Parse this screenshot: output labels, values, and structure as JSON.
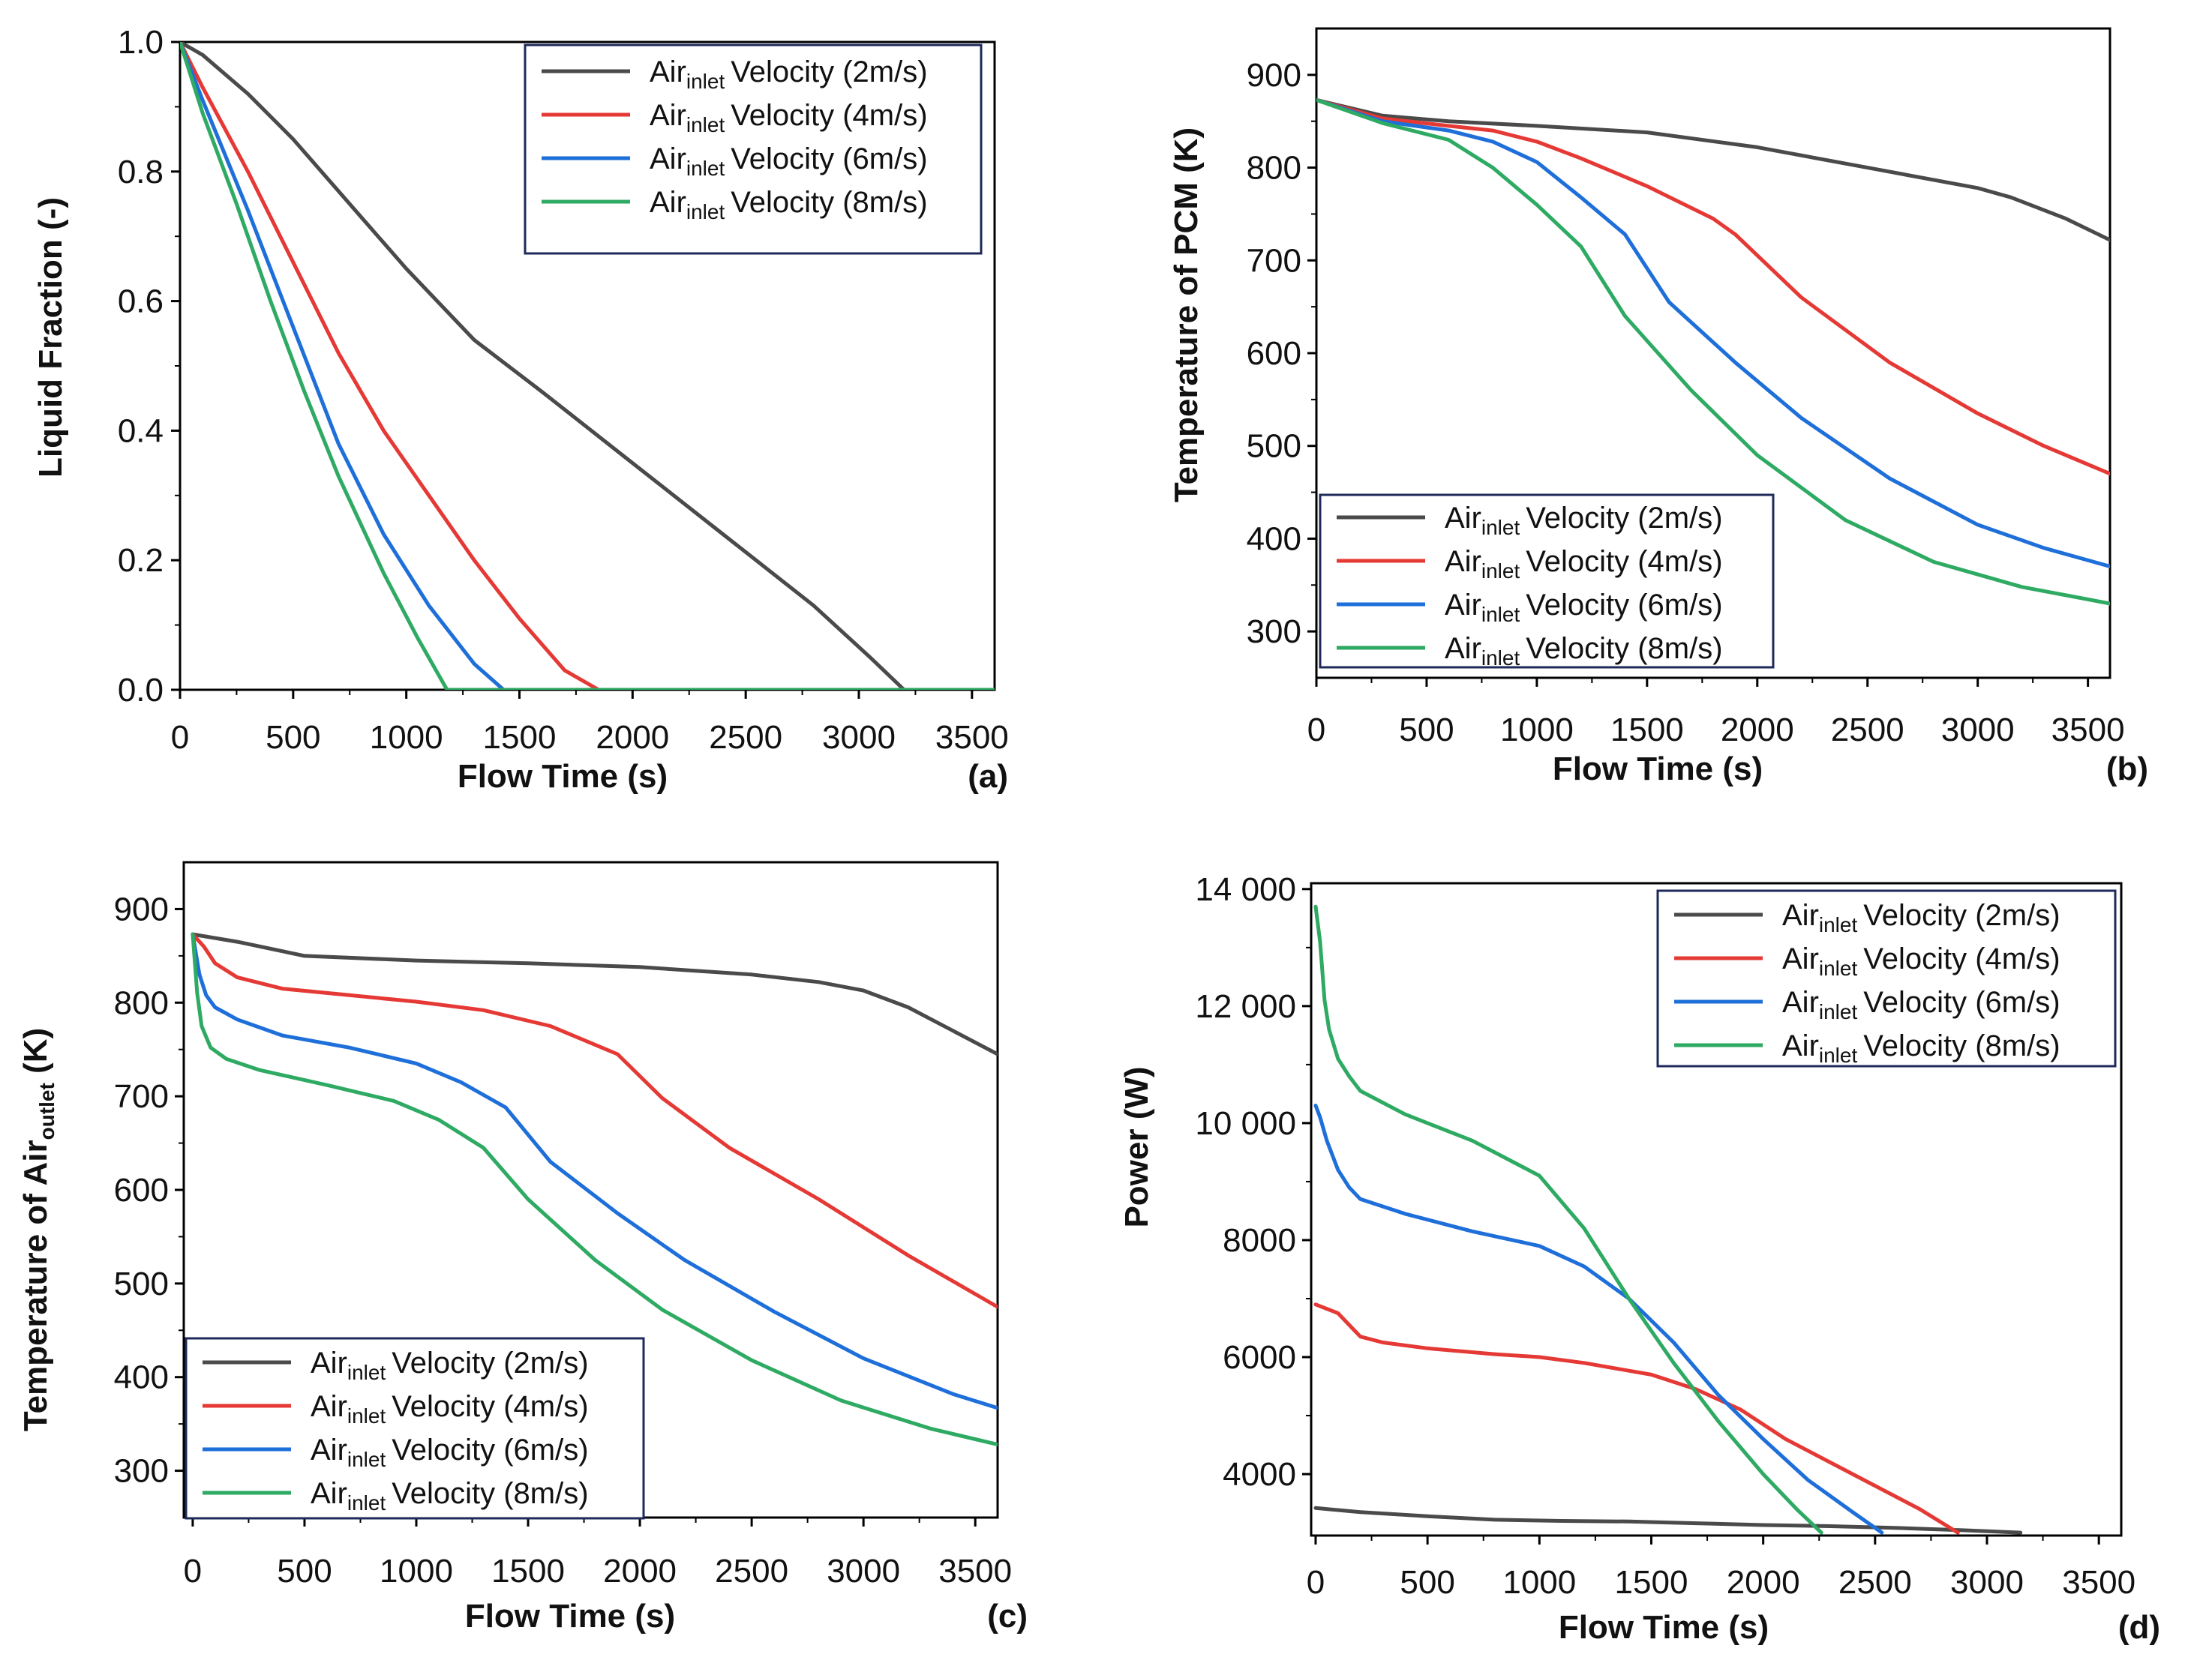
{
  "colors": {
    "2m/s": "#4a4a4a",
    "4m/s": "#e53935",
    "6m/s": "#1e6fd9",
    "8m/s": "#2eaa63",
    "axis": "#000000",
    "legend_border": "#1f2a5a"
  },
  "legend_entries": [
    {
      "main": "Air",
      "sub": "inlet",
      "rest": "Velocity (2m/s)"
    },
    {
      "main": "Air",
      "sub": "inlet",
      "rest": "Velocity (4m/s)"
    },
    {
      "main": "Air",
      "sub": "inlet",
      "rest": "Velocity (6m/s)"
    },
    {
      "main": "Air",
      "sub": "inlet",
      "rest": "Velocity (8m/s)"
    }
  ],
  "chart_data": [
    {
      "id": "a",
      "type": "line",
      "panel_label": "(a)",
      "xlabel": "Flow Time    (s)",
      "ylabel": "Liquid Fraction  (-)",
      "xlim": [
        0,
        3600
      ],
      "ylim": [
        0,
        1.0
      ],
      "xticks": [
        0,
        500,
        1000,
        1500,
        2000,
        2500,
        3000,
        3500
      ],
      "yticks": [
        0.0,
        0.2,
        0.4,
        0.6,
        0.8,
        1.0
      ],
      "yticklabels": [
        "0.0",
        "0.2",
        "0.4",
        "0.6",
        "0.8",
        "1.0"
      ],
      "legend_position": "top-right",
      "series": [
        {
          "name": "2m/s",
          "x": [
            0,
            100,
            300,
            500,
            800,
            1000,
            1300,
            1600,
            2000,
            2400,
            2800,
            3050,
            3200,
            3600
          ],
          "y": [
            1.0,
            0.98,
            0.92,
            0.85,
            0.73,
            0.65,
            0.54,
            0.46,
            0.35,
            0.24,
            0.13,
            0.05,
            0.0,
            0.0
          ]
        },
        {
          "name": "4m/s",
          "x": [
            0,
            100,
            300,
            500,
            700,
            900,
            1100,
            1300,
            1500,
            1700,
            1850,
            3600
          ],
          "y": [
            1.0,
            0.93,
            0.8,
            0.66,
            0.52,
            0.4,
            0.3,
            0.2,
            0.11,
            0.03,
            0.0,
            0.0
          ]
        },
        {
          "name": "6m/s",
          "x": [
            0,
            100,
            300,
            500,
            700,
            900,
            1100,
            1300,
            1430,
            3600
          ],
          "y": [
            1.0,
            0.91,
            0.74,
            0.56,
            0.38,
            0.24,
            0.13,
            0.04,
            0.0,
            0.0
          ]
        },
        {
          "name": "8m/s",
          "x": [
            0,
            100,
            250,
            400,
            550,
            700,
            900,
            1050,
            1180,
            3600
          ],
          "y": [
            1.0,
            0.89,
            0.75,
            0.6,
            0.46,
            0.33,
            0.18,
            0.08,
            0.0,
            0.0
          ]
        }
      ]
    },
    {
      "id": "b",
      "type": "line",
      "panel_label": "(b)",
      "xlabel": "Flow Time    (s)",
      "ylabel": "Temperature of PCM  (K)",
      "xlim": [
        0,
        3600
      ],
      "ylim": [
        250,
        950
      ],
      "xticks": [
        0,
        500,
        1000,
        1500,
        2000,
        2500,
        3000,
        3500
      ],
      "yticks": [
        300,
        400,
        500,
        600,
        700,
        800,
        900
      ],
      "yticklabels": [
        "300",
        "400",
        "500",
        "600",
        "700",
        "800",
        "900"
      ],
      "legend_position": "bottom-left",
      "series": [
        {
          "name": "2m/s",
          "x": [
            0,
            300,
            600,
            1000,
            1500,
            2000,
            2500,
            3000,
            3150,
            3400,
            3600
          ],
          "y": [
            873,
            856,
            850,
            845,
            838,
            822,
            800,
            778,
            768,
            745,
            722
          ]
        },
        {
          "name": "4m/s",
          "x": [
            0,
            300,
            600,
            800,
            1000,
            1200,
            1500,
            1800,
            1900,
            2200,
            2600,
            3000,
            3300,
            3600
          ],
          "y": [
            873,
            853,
            845,
            840,
            828,
            810,
            780,
            745,
            728,
            660,
            590,
            535,
            500,
            470
          ]
        },
        {
          "name": "6m/s",
          "x": [
            0,
            300,
            600,
            800,
            1000,
            1200,
            1400,
            1600,
            1900,
            2200,
            2600,
            3000,
            3300,
            3600
          ],
          "y": [
            873,
            850,
            840,
            828,
            806,
            768,
            728,
            655,
            590,
            530,
            465,
            415,
            390,
            370
          ]
        },
        {
          "name": "8m/s",
          "x": [
            0,
            300,
            600,
            800,
            1000,
            1200,
            1400,
            1700,
            2000,
            2400,
            2800,
            3200,
            3600
          ],
          "y": [
            873,
            848,
            830,
            800,
            760,
            715,
            640,
            560,
            490,
            420,
            375,
            348,
            330
          ]
        }
      ]
    },
    {
      "id": "c",
      "type": "line",
      "panel_label": "(c)",
      "xlabel": "Flow Time    (s)",
      "ylabel": "Temperature of Air_outlet  (K)",
      "xlim": [
        -40,
        3600
      ],
      "ylim": [
        250,
        950
      ],
      "xticks": [
        0,
        500,
        1000,
        1500,
        2000,
        2500,
        3000,
        3500
      ],
      "yticks": [
        300,
        400,
        500,
        600,
        700,
        800,
        900
      ],
      "yticklabels": [
        "300",
        "400",
        "500",
        "600",
        "700",
        "800",
        "900"
      ],
      "legend_position": "bottom-left",
      "series": [
        {
          "name": "2m/s",
          "x": [
            0,
            200,
            500,
            1000,
            1500,
            2000,
            2500,
            2800,
            3000,
            3200,
            3400,
            3600
          ],
          "y": [
            873,
            865,
            850,
            845,
            842,
            838,
            830,
            822,
            813,
            795,
            770,
            745
          ]
        },
        {
          "name": "4m/s",
          "x": [
            0,
            50,
            100,
            200,
            400,
            700,
            1000,
            1300,
            1600,
            1900,
            2100,
            2400,
            2800,
            3200,
            3600
          ],
          "y": [
            873,
            860,
            842,
            827,
            815,
            808,
            801,
            792,
            775,
            745,
            698,
            645,
            590,
            530,
            475
          ]
        },
        {
          "name": "6m/s",
          "x": [
            0,
            30,
            60,
            100,
            200,
            400,
            700,
            1000,
            1200,
            1400,
            1600,
            1900,
            2200,
            2600,
            3000,
            3400,
            3600
          ],
          "y": [
            873,
            830,
            808,
            795,
            782,
            765,
            752,
            735,
            715,
            688,
            630,
            575,
            525,
            470,
            420,
            382,
            367
          ]
        },
        {
          "name": "8m/s",
          "x": [
            0,
            20,
            40,
            80,
            150,
            300,
            600,
            900,
            1100,
            1300,
            1500,
            1800,
            2100,
            2500,
            2900,
            3300,
            3600
          ],
          "y": [
            873,
            810,
            775,
            752,
            740,
            728,
            712,
            695,
            675,
            645,
            590,
            525,
            472,
            418,
            375,
            345,
            328
          ]
        }
      ]
    },
    {
      "id": "d",
      "type": "line",
      "panel_label": "(d)",
      "xlabel": "Flow Time    (s)",
      "ylabel": "Power    (W)",
      "xlim": [
        -20,
        3600
      ],
      "ylim": [
        2950,
        14100
      ],
      "xticks": [
        0,
        500,
        1000,
        1500,
        2000,
        2500,
        3000,
        3500
      ],
      "yticks": [
        4000,
        6000,
        8000,
        10000,
        12000,
        14000
      ],
      "yticklabels": [
        "4000",
        "6000",
        "8000",
        "10 000",
        "12 000",
        "14 000"
      ],
      "legend_position": "top-right",
      "series": [
        {
          "name": "2m/s",
          "x": [
            0,
            200,
            500,
            800,
            1100,
            1400,
            1700,
            2000,
            2300,
            2600,
            2900,
            3150
          ],
          "y": [
            3420,
            3350,
            3280,
            3220,
            3200,
            3190,
            3160,
            3130,
            3110,
            3080,
            3040,
            3000
          ]
        },
        {
          "name": "4m/s",
          "x": [
            0,
            100,
            200,
            300,
            500,
            800,
            1000,
            1200,
            1500,
            1700,
            1900,
            2100,
            2400,
            2700,
            2870
          ],
          "y": [
            6900,
            6750,
            6350,
            6250,
            6150,
            6050,
            6000,
            5900,
            5700,
            5450,
            5100,
            4600,
            4000,
            3400,
            3000
          ]
        },
        {
          "name": "6m/s",
          "x": [
            0,
            20,
            50,
            100,
            150,
            200,
            400,
            700,
            1000,
            1200,
            1400,
            1600,
            1800,
            2000,
            2200,
            2400,
            2530
          ],
          "y": [
            10300,
            10100,
            9700,
            9200,
            8900,
            8700,
            8450,
            8150,
            7900,
            7550,
            7000,
            6250,
            5350,
            4600,
            3900,
            3350,
            3000
          ]
        },
        {
          "name": "8m/s",
          "x": [
            0,
            20,
            40,
            60,
            100,
            150,
            200,
            400,
            700,
            1000,
            1200,
            1400,
            1600,
            1800,
            2000,
            2150,
            2260
          ],
          "y": [
            13700,
            13100,
            12100,
            11600,
            11100,
            10800,
            10550,
            10150,
            9700,
            9100,
            8200,
            7000,
            5900,
            4900,
            4000,
            3400,
            3000
          ]
        }
      ]
    }
  ]
}
